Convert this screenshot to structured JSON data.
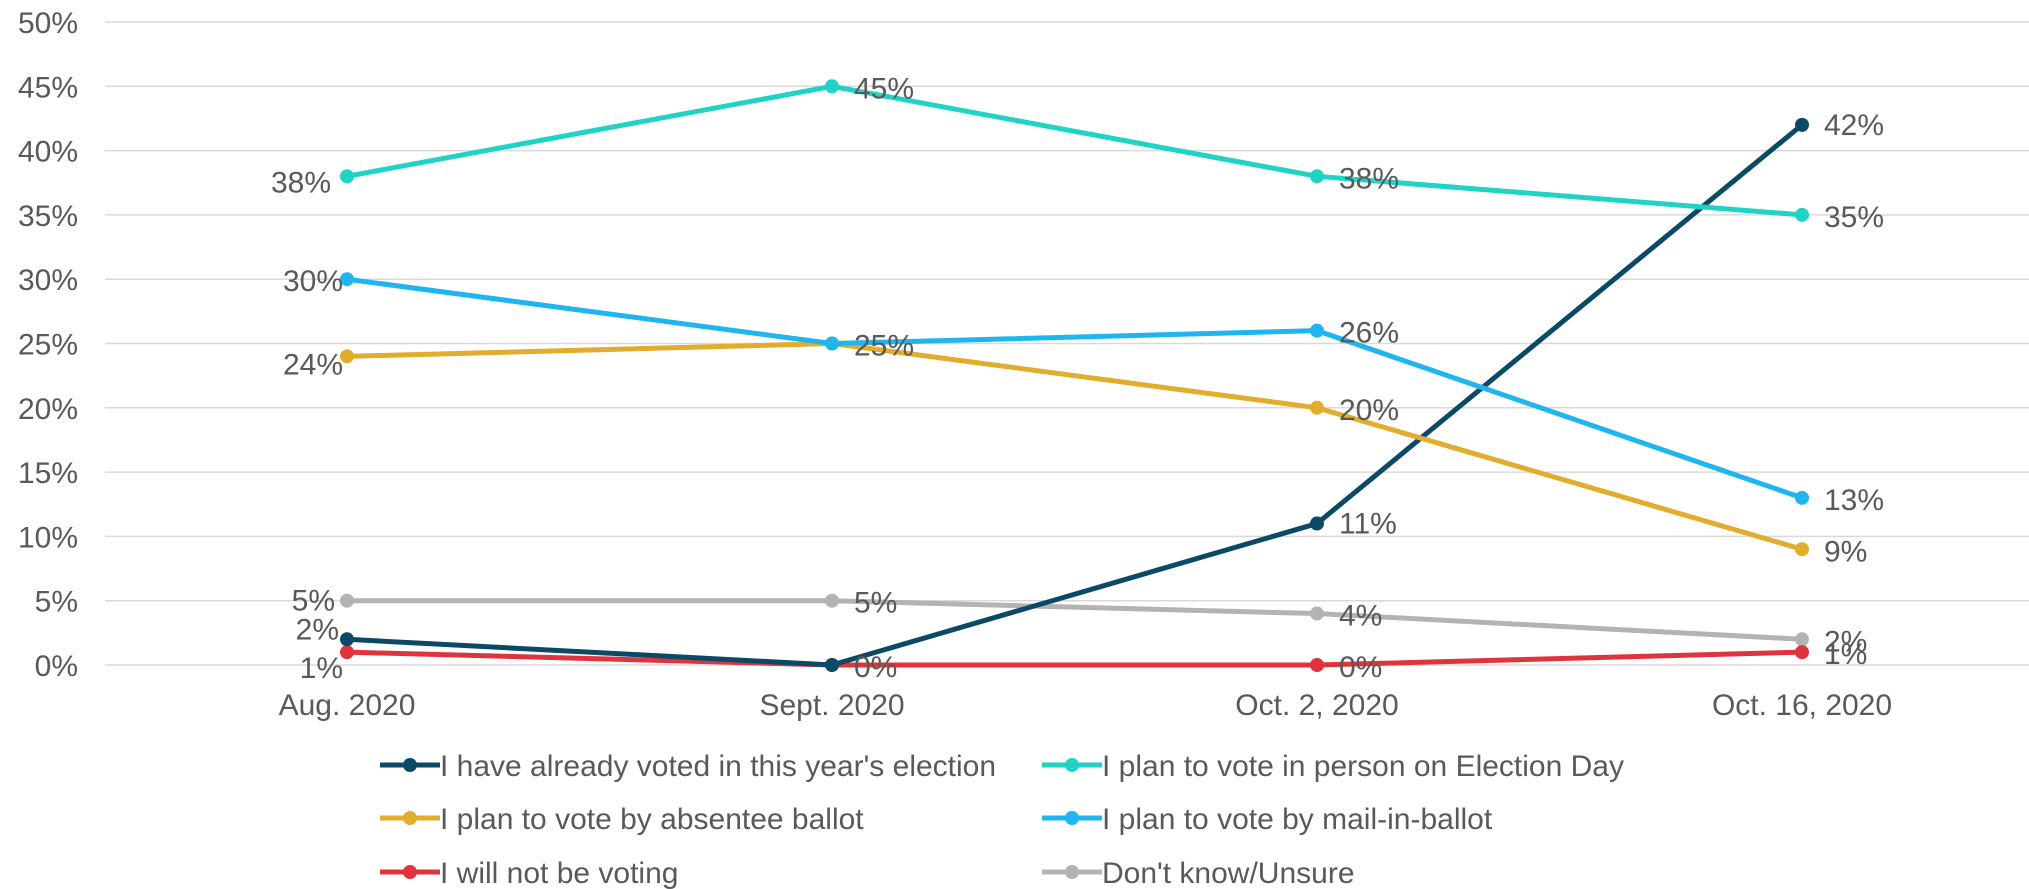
{
  "chart_data": {
    "type": "line",
    "title": "",
    "xlabel": "",
    "ylabel": "",
    "ylim": [
      0,
      50
    ],
    "y_ticks": [
      "0%",
      "5%",
      "10%",
      "15%",
      "20%",
      "25%",
      "30%",
      "35%",
      "40%",
      "45%",
      "50%"
    ],
    "categories": [
      "Aug. 2020",
      "Sept. 2020",
      "Oct. 2, 2020",
      "Oct. 16, 2020"
    ],
    "grid": true,
    "legend_position": "bottom",
    "series": [
      {
        "name": "I have already voted in this year's election",
        "color": "#0b4a66",
        "values": [
          2,
          0,
          11,
          42
        ],
        "labels": [
          "2%",
          "",
          "11%",
          "42%"
        ]
      },
      {
        "name": "I plan to vote in person on Election Day",
        "color": "#1fd3c6",
        "values": [
          38,
          45,
          38,
          35
        ],
        "labels": [
          "38%",
          "45%",
          "38%",
          "35%"
        ]
      },
      {
        "name": "I plan to vote by absentee ballot",
        "color": "#e2ac2c",
        "values": [
          24,
          25,
          20,
          9
        ],
        "labels": [
          "24%",
          "",
          "20%",
          "9%"
        ]
      },
      {
        "name": "I plan to vote by mail-in-ballot",
        "color": "#1fb5f0",
        "values": [
          30,
          25,
          26,
          13
        ],
        "labels": [
          "30%",
          "25%",
          "26%",
          "13%"
        ]
      },
      {
        "name": "I will not be voting",
        "color": "#e0333c",
        "values": [
          1,
          0,
          0,
          1
        ],
        "labels": [
          "1%",
          "0%",
          "0%",
          "1%"
        ]
      },
      {
        "name": "Don't know/Unsure",
        "color": "#b3b3b3",
        "values": [
          5,
          5,
          4,
          2
        ],
        "labels": [
          "5%",
          "5%",
          "4%",
          "2%"
        ]
      }
    ]
  }
}
